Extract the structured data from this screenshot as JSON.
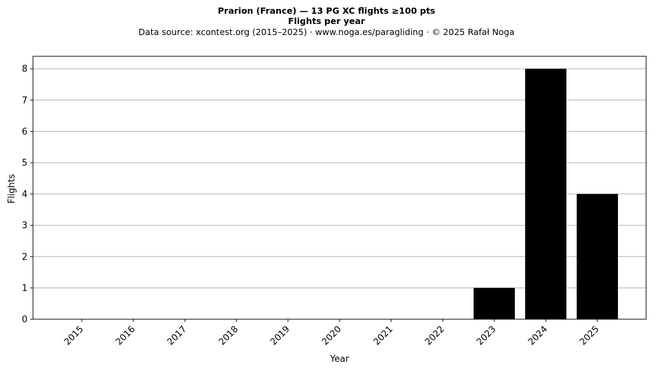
{
  "chart_data": {
    "type": "bar",
    "title": "Prarion (France)  —  13 PG XC flights ≥100 pts",
    "subtitle": "Flights per year",
    "source_note": "Data source: xcontest.org (2015–2025)  ·  www.noga.es/paragliding  ·  © 2025 Rafał Noga",
    "xlabel": "Year",
    "ylabel": "Flights",
    "categories": [
      "2015",
      "2016",
      "2017",
      "2018",
      "2019",
      "2020",
      "2021",
      "2022",
      "2023",
      "2024",
      "2025"
    ],
    "values": [
      0,
      0,
      0,
      0,
      0,
      0,
      0,
      0,
      1,
      8,
      4
    ],
    "ylim": [
      0,
      8.4
    ],
    "yticks": [
      0,
      1,
      2,
      3,
      4,
      5,
      6,
      7,
      8
    ],
    "grid": "horizontal",
    "bar_color": "#000000",
    "grid_color": "#b0b0b0"
  }
}
